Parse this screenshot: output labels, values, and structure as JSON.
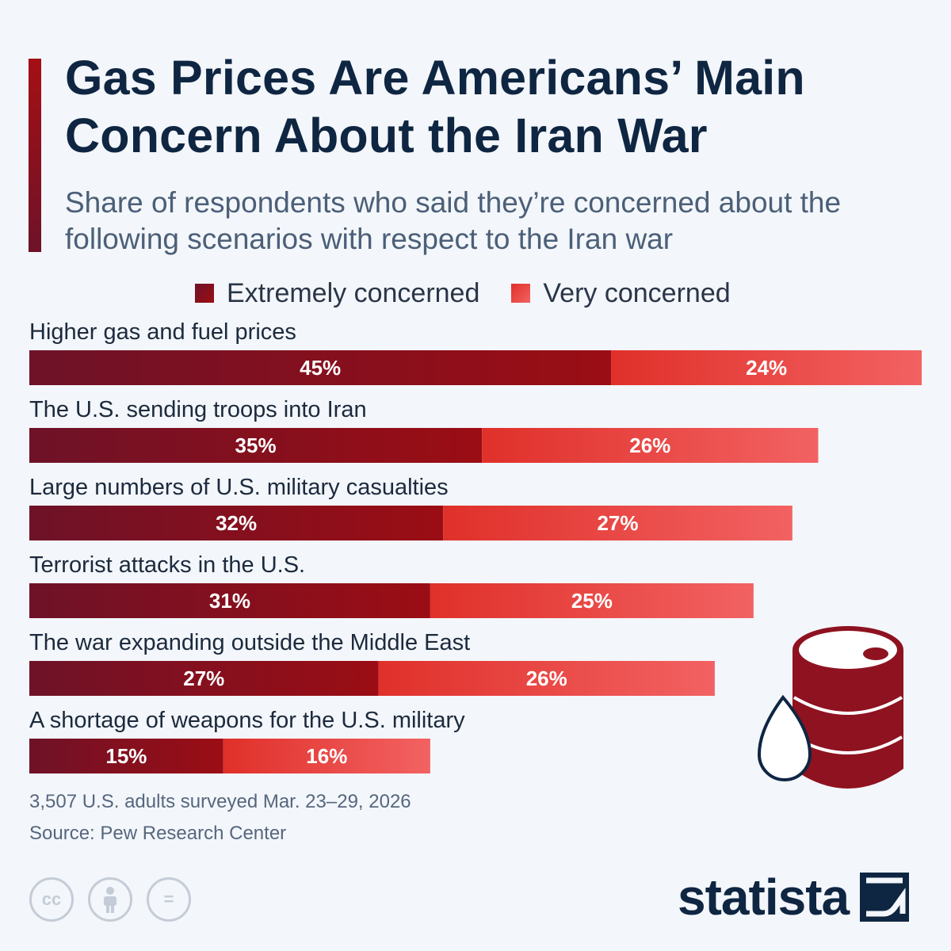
{
  "header": {
    "title": "Gas Prices Are Americans’ Main Concern About the Iran War",
    "subtitle": "Share of respondents who said they’re concerned about the following scenarios with respect to the Iran war"
  },
  "legend": {
    "extreme": "Extremely concerned",
    "very": "Very concerned"
  },
  "colors": {
    "extreme_dark": "#6e1228",
    "extreme_light": "#9b0d14",
    "very_dark": "#e0302a",
    "very_light": "#f26262",
    "title": "#0f2642"
  },
  "chart_data": {
    "type": "bar",
    "orientation": "horizontal",
    "stacked": true,
    "categories": [
      "Higher gas and fuel prices",
      "The U.S. sending troops into Iran",
      "Large numbers of U.S. military casualties",
      "Terrorist attacks in the U.S.",
      "The war expanding outside the Middle East",
      "A shortage of weapons for the U.S. military"
    ],
    "series": [
      {
        "name": "Extremely concerned",
        "values": [
          45,
          35,
          32,
          31,
          27,
          15
        ]
      },
      {
        "name": "Very concerned",
        "values": [
          24,
          26,
          27,
          25,
          26,
          16
        ]
      }
    ],
    "value_suffix": "%",
    "xlim": [
      0,
      69
    ],
    "grid": false,
    "legend_position": "top"
  },
  "footer": {
    "note": "3,507 U.S. adults surveyed Mar. 23–29, 2026",
    "source": "Source: Pew Research Center",
    "brand": "statista",
    "license_icons": [
      "cc-icon",
      "attribution-icon",
      "no-derivatives-icon"
    ]
  }
}
